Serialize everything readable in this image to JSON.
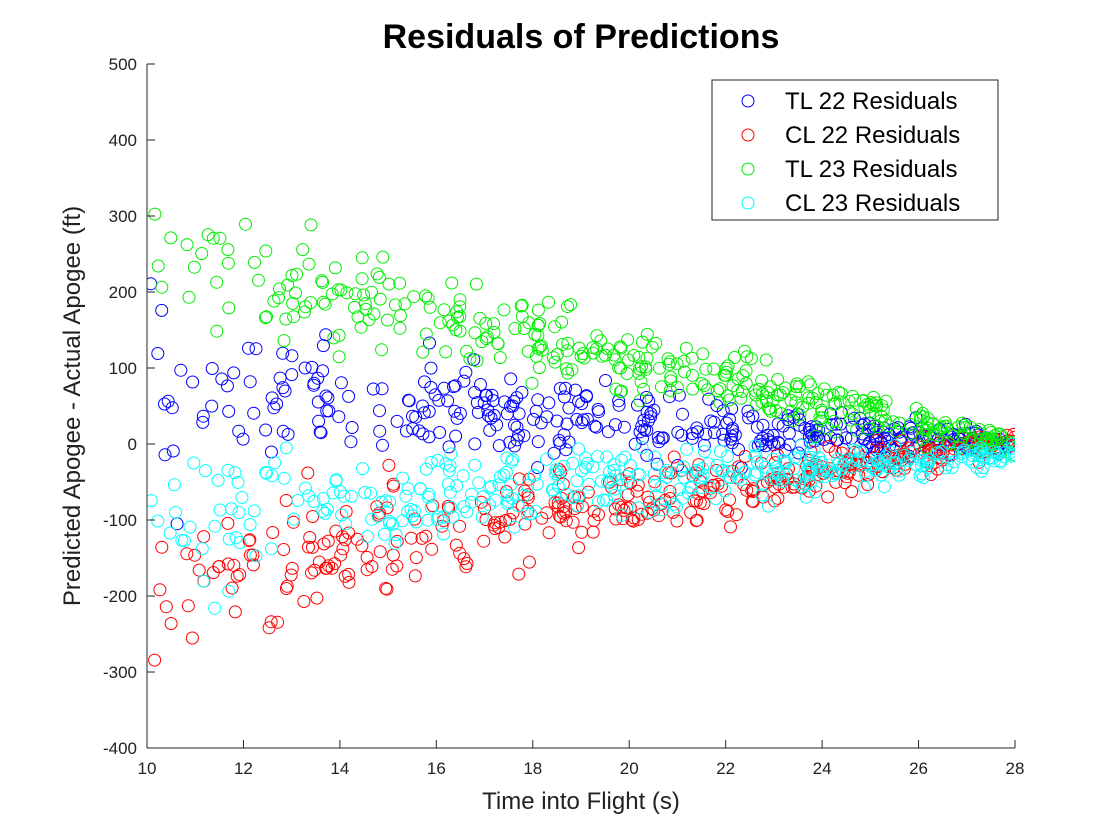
{
  "chart_data": {
    "type": "scatter",
    "title": "Residuals of Predictions",
    "xlabel": "Time into Flight (s)",
    "ylabel": "Predicted Apogee - Actual Apogee (ft)",
    "xlim": [
      10,
      28
    ],
    "ylim": [
      -400,
      500
    ],
    "xticks": [
      10,
      12,
      14,
      16,
      18,
      20,
      22,
      24,
      26,
      28
    ],
    "yticks": [
      -400,
      -300,
      -200,
      -100,
      0,
      100,
      200,
      300,
      400,
      500
    ],
    "grid": false,
    "legend_position": "top-right",
    "marker": "open-circle",
    "series": [
      {
        "name": "TL 22 Residuals",
        "color": "#0000ff",
        "mean_start": 70,
        "mean_end": 0,
        "spread_start": 75,
        "spread_end": 8,
        "points": 380
      },
      {
        "name": "CL 22 Residuals",
        "color": "#ff0000",
        "mean_start": -200,
        "mean_end": 5,
        "spread_start": 70,
        "spread_end": 10,
        "points": 380
      },
      {
        "name": "TL 23 Residuals",
        "color": "#00ee00",
        "mean_start": 260,
        "mean_end": 0,
        "spread_start": 75,
        "spread_end": 10,
        "points": 380
      },
      {
        "name": "CL 23 Residuals",
        "color": "#00ffff",
        "mean_start": -100,
        "mean_end": -15,
        "spread_start": 60,
        "spread_end": 10,
        "points": 380
      }
    ]
  }
}
